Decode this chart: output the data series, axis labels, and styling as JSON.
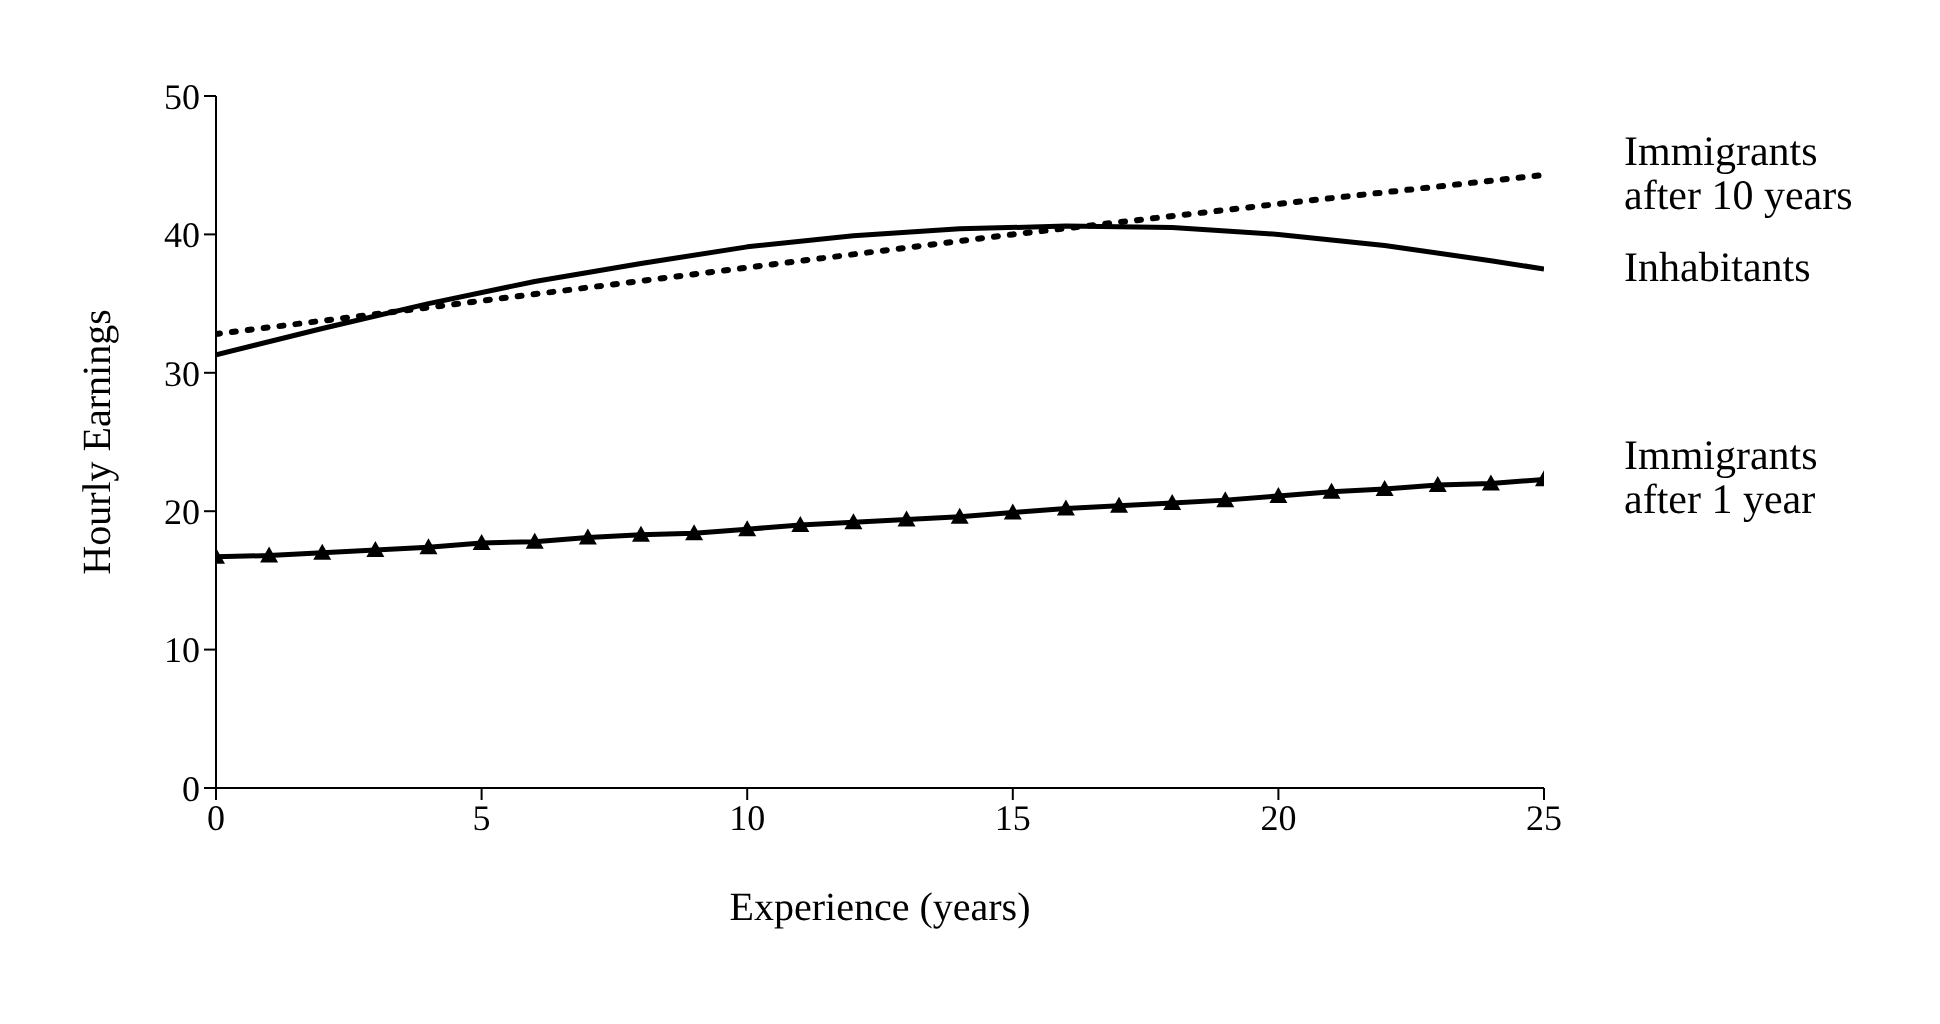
{
  "chart_data": {
    "type": "line",
    "xlabel": "Experience (years)",
    "ylabel": "Hourly Earnings",
    "xlim": [
      0,
      25
    ],
    "xticks": [
      0,
      5,
      10,
      15,
      20,
      25
    ],
    "ylim": [
      0,
      50
    ],
    "yticks": [
      0,
      10,
      20,
      30,
      40,
      50
    ],
    "series": [
      {
        "name": "Immigrants after 10 years",
        "color": "#000000",
        "line_style": "dotted",
        "marker": "none",
        "x": [
          0,
          5,
          10,
          15,
          20,
          25
        ],
        "values": [
          32.8,
          35.2,
          37.6,
          40.0,
          42.2,
          44.3
        ]
      },
      {
        "name": "Inhabitants",
        "color": "#000000",
        "line_style": "solid",
        "marker": "none",
        "x": [
          0,
          2,
          4,
          6,
          8,
          10,
          12,
          14,
          16,
          18,
          20,
          22,
          24,
          25
        ],
        "values": [
          31.3,
          33.2,
          35.0,
          36.6,
          37.9,
          39.1,
          39.9,
          40.4,
          40.6,
          40.5,
          40.0,
          39.2,
          38.1,
          37.5
        ]
      },
      {
        "name": "Immigrants after 1 year",
        "color": "#000000",
        "line_style": "solid",
        "marker": "triangle",
        "x": [
          0,
          1,
          2,
          3,
          4,
          5,
          6,
          7,
          8,
          9,
          10,
          11,
          12,
          13,
          14,
          15,
          16,
          17,
          18,
          19,
          20,
          21,
          22,
          23,
          24,
          25
        ],
        "values": [
          16.7,
          16.8,
          17.0,
          17.2,
          17.4,
          17.7,
          17.8,
          18.1,
          18.3,
          18.4,
          18.7,
          19.0,
          19.2,
          19.4,
          19.6,
          19.9,
          20.2,
          20.4,
          20.6,
          20.8,
          21.1,
          21.4,
          21.6,
          21.9,
          22.0,
          22.3
        ]
      }
    ]
  }
}
